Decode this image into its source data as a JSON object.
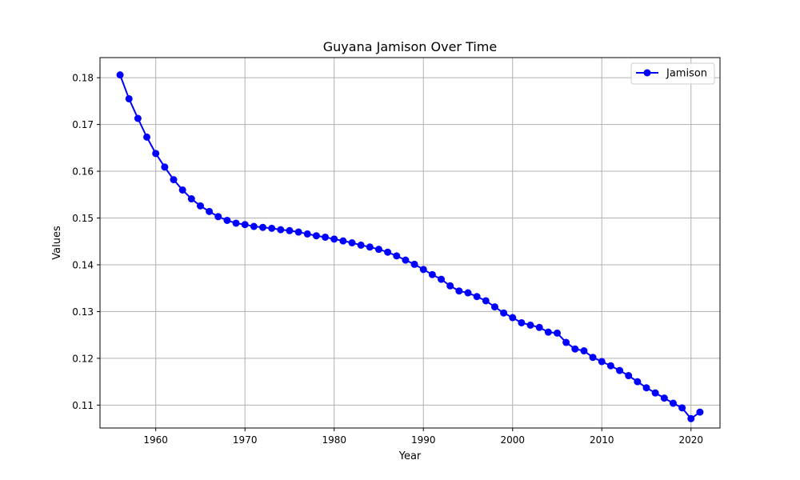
{
  "chart_data": {
    "type": "line",
    "title": "Guyana Jamison Over Time",
    "xlabel": "Year",
    "ylabel": "Values",
    "xlim": [
      1953.75,
      2023.25
    ],
    "ylim": [
      0.1051,
      0.1843
    ],
    "xticks": [
      1960,
      1970,
      1980,
      1990,
      2000,
      2010,
      2020
    ],
    "xtick_labels": [
      "1960",
      "1970",
      "1980",
      "1990",
      "2000",
      "2010",
      "2020"
    ],
    "yticks": [
      0.11,
      0.12,
      0.13,
      0.14,
      0.15,
      0.16,
      0.17,
      0.18
    ],
    "ytick_labels": [
      "0.11",
      "0.12",
      "0.13",
      "0.14",
      "0.15",
      "0.16",
      "0.17",
      "0.18"
    ],
    "grid": true,
    "legend": {
      "position": "top-right"
    },
    "series": [
      {
        "name": "Jamison",
        "color": "#0000ff",
        "marker": "circle",
        "x": [
          1956,
          1957,
          1958,
          1959,
          1960,
          1961,
          1962,
          1963,
          1964,
          1965,
          1966,
          1967,
          1968,
          1969,
          1970,
          1971,
          1972,
          1973,
          1974,
          1975,
          1976,
          1977,
          1978,
          1979,
          1980,
          1981,
          1982,
          1983,
          1984,
          1985,
          1986,
          1987,
          1988,
          1989,
          1990,
          1991,
          1992,
          1993,
          1994,
          1995,
          1996,
          1997,
          1998,
          1999,
          2000,
          2001,
          2002,
          2003,
          2004,
          2005,
          2006,
          2007,
          2008,
          2009,
          2010,
          2011,
          2012,
          2013,
          2014,
          2015,
          2016,
          2017,
          2018,
          2019,
          2020,
          2021
        ],
        "y": [
          0.1806,
          0.1755,
          0.1713,
          0.1673,
          0.1638,
          0.1609,
          0.1582,
          0.156,
          0.1541,
          0.1526,
          0.1514,
          0.1503,
          0.1495,
          0.1489,
          0.1486,
          0.1482,
          0.148,
          0.1478,
          0.1475,
          0.1473,
          0.147,
          0.1466,
          0.1462,
          0.1459,
          0.1455,
          0.1451,
          0.1447,
          0.1442,
          0.1438,
          0.1433,
          0.1427,
          0.1419,
          0.141,
          0.1401,
          0.139,
          0.1379,
          0.1369,
          0.1355,
          0.1344,
          0.134,
          0.1332,
          0.1323,
          0.131,
          0.1297,
          0.1287,
          0.1276,
          0.1271,
          0.1266,
          0.1256,
          0.1254,
          0.1234,
          0.122,
          0.1216,
          0.1202,
          0.1193,
          0.1184,
          0.1174,
          0.1163,
          0.115,
          0.1137,
          0.1126,
          0.1115,
          0.1104,
          0.1094,
          0.1071,
          0.1085
        ]
      }
    ]
  }
}
